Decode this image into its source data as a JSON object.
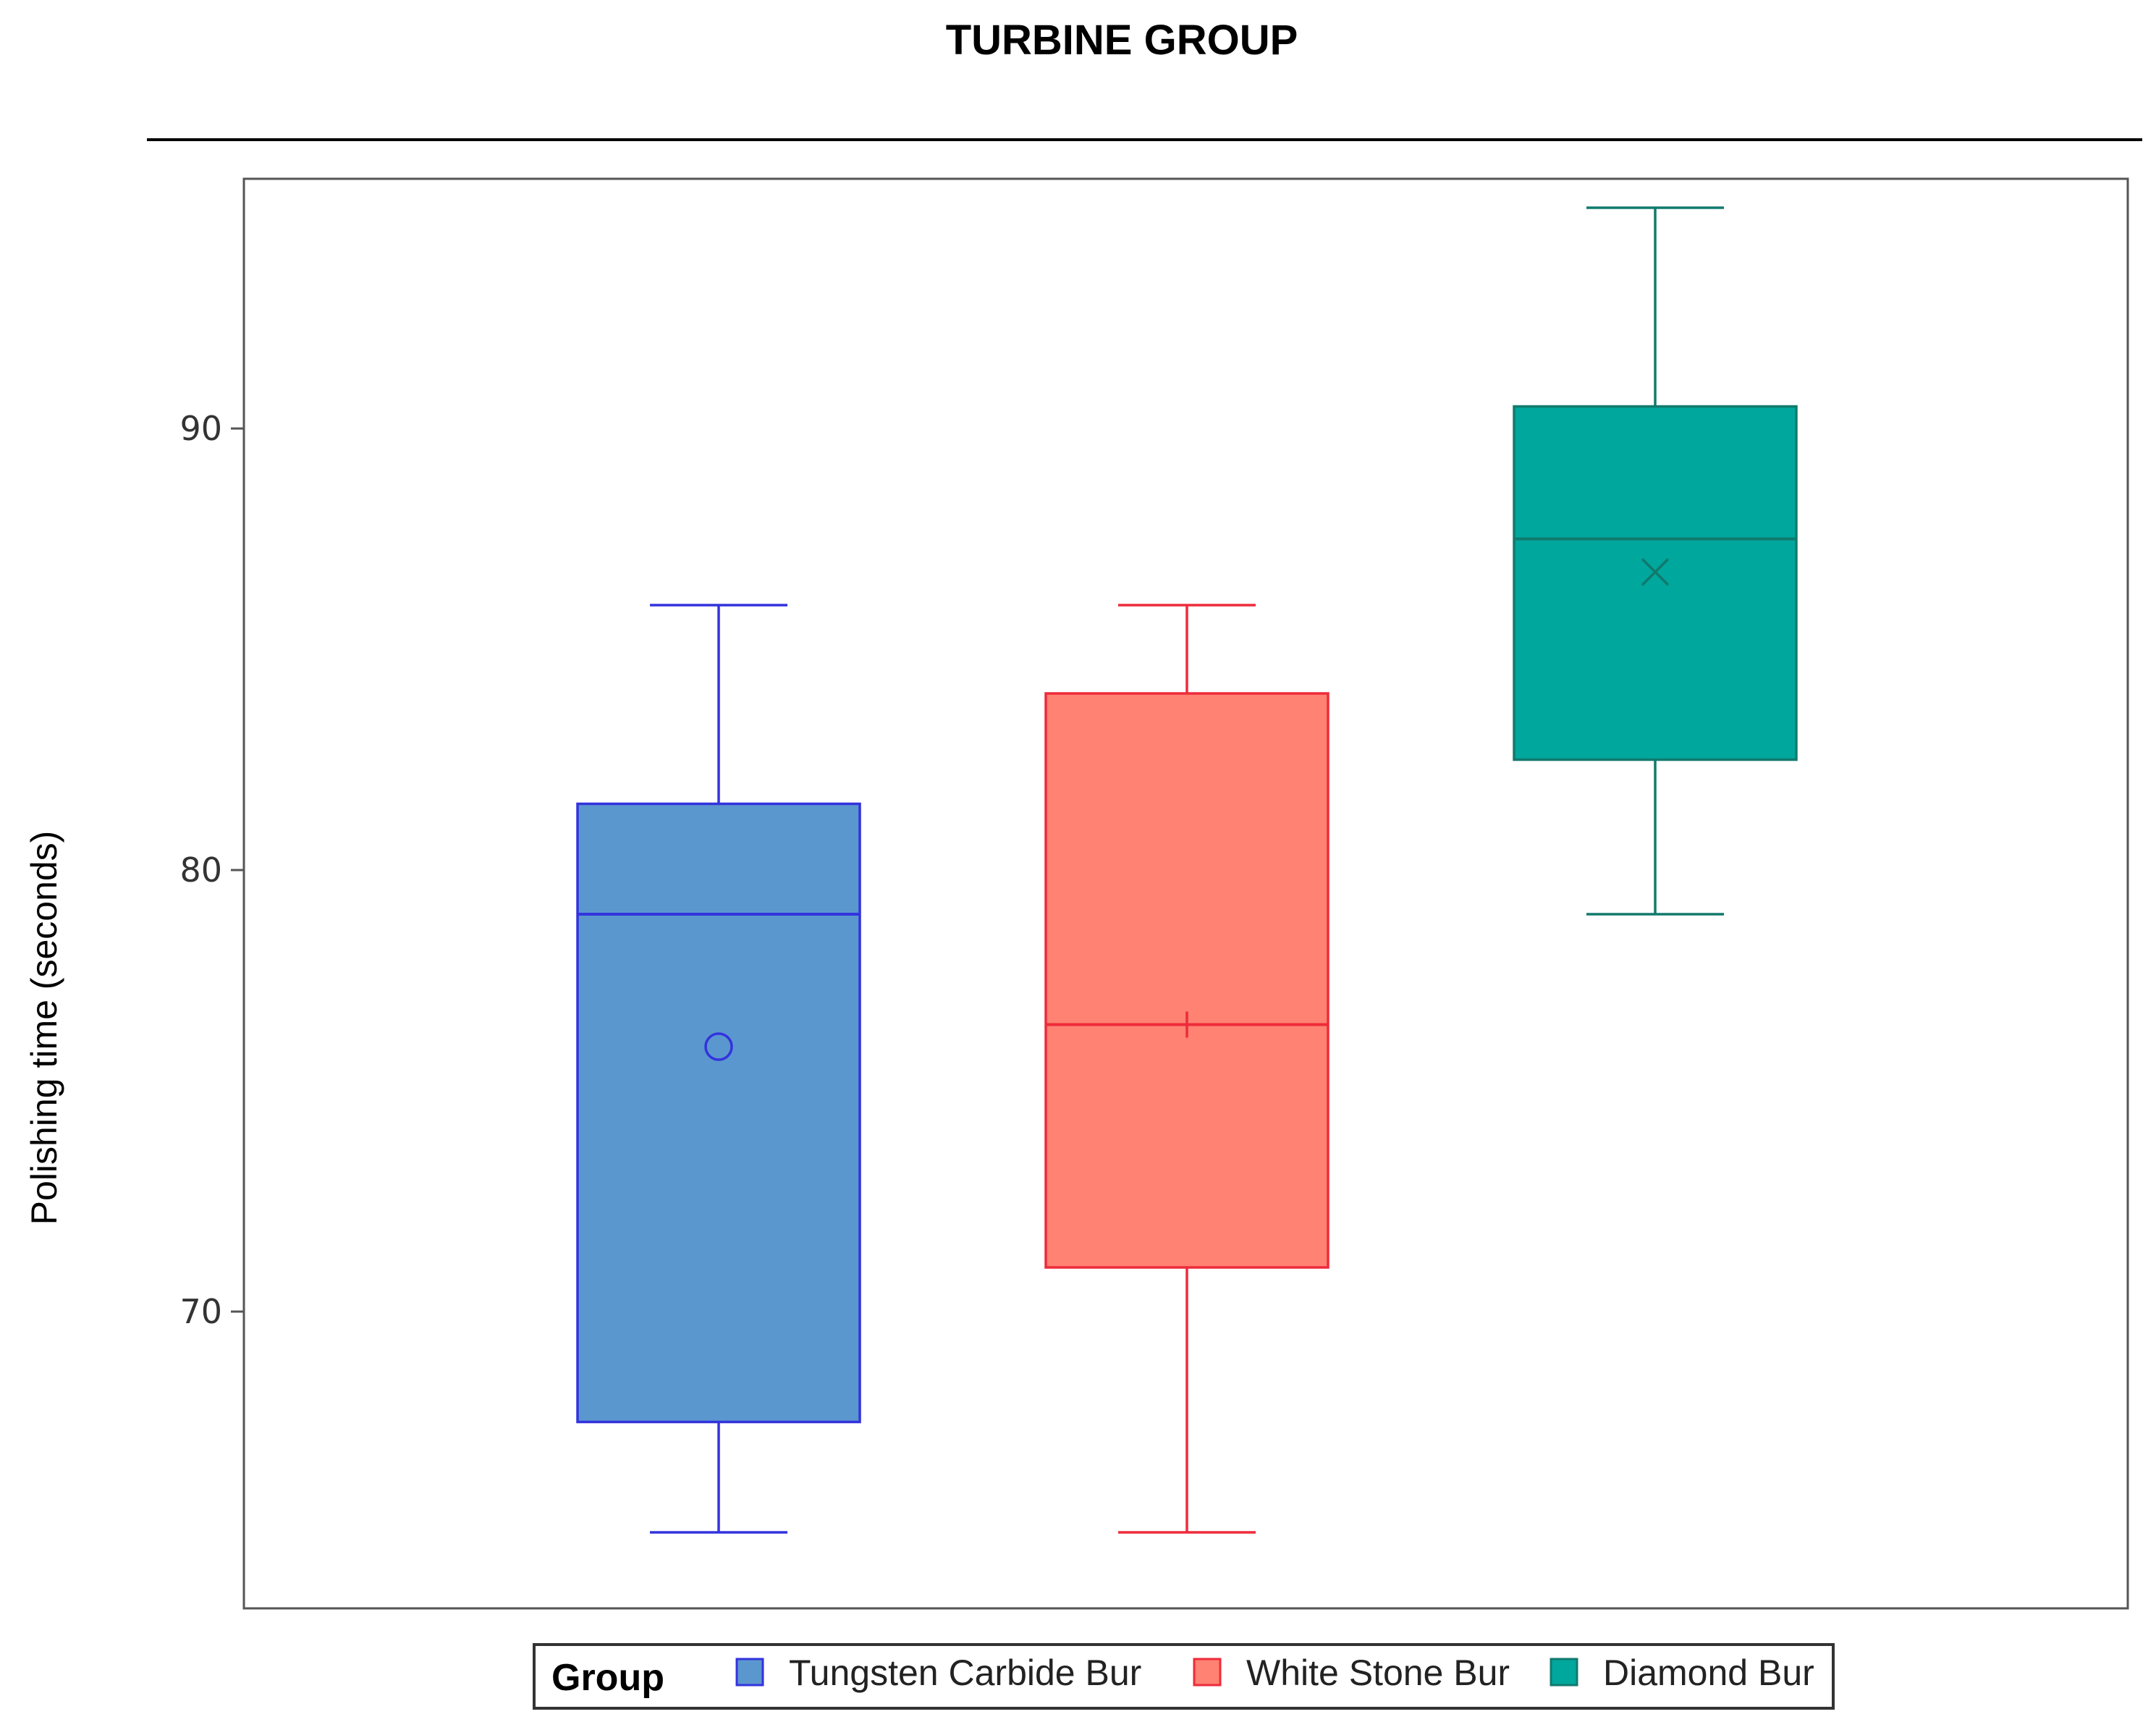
{
  "chart_data": {
    "type": "box",
    "title": "TURBINE GROUP",
    "xlabel": "",
    "ylabel": "Polishing time (seconds)",
    "ylim": [
      64.5,
      96.5
    ],
    "yticks": [
      70,
      80,
      90
    ],
    "grid": false,
    "legend": {
      "title": "Group",
      "placement": "bottom",
      "entries": [
        "Tungsten Carbide Bur",
        "White Stone Bur",
        "Diamond Bur"
      ]
    },
    "series": [
      {
        "name": "Tungsten Carbide Bur",
        "color": "#5b97cf",
        "edge_color": "#3333dd",
        "min": 65,
        "q1": 67.5,
        "median": 79,
        "q3": 81.5,
        "max": 86,
        "mean": 76,
        "mean_marker": "circle"
      },
      {
        "name": "White Stone Bur",
        "color": "#ff8272",
        "edge_color": "#ee2b3b",
        "min": 65,
        "q1": 71,
        "median": 76.5,
        "q3": 84,
        "max": 86,
        "mean": 76.5,
        "mean_marker": "plus"
      },
      {
        "name": "Diamond Bur",
        "color": "#00a79d",
        "edge_color": "#117a6d",
        "min": 79,
        "q1": 82.5,
        "median": 87.5,
        "q3": 90.5,
        "max": 95,
        "mean": 86.75,
        "mean_marker": "x"
      }
    ]
  }
}
